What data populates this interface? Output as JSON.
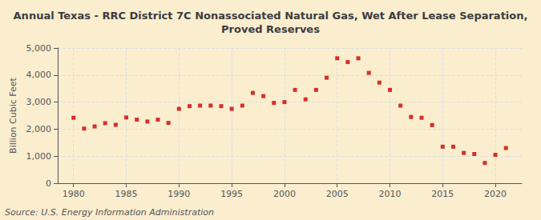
{
  "chart_data": {
    "type": "scatter",
    "title": "Annual Texas - RRC District 7C Nonassociated Natural Gas, Wet After Lease Separation,\nProved Reserves",
    "y_label": "Billion Cubic Feet",
    "annotations": [
      "Source: U.S. Energy Information Administration"
    ],
    "x": [
      1980,
      1981,
      1982,
      1983,
      1984,
      1985,
      1986,
      1987,
      1988,
      1989,
      1990,
      1991,
      1992,
      1993,
      1994,
      1995,
      1996,
      1997,
      1998,
      1999,
      2000,
      2001,
      2002,
      2003,
      2004,
      2005,
      2006,
      2007,
      2008,
      2009,
      2010,
      2011,
      2012,
      2013,
      2014,
      2015,
      2016,
      2017,
      2018,
      2019,
      2020,
      2021
    ],
    "values": [
      2420,
      2020,
      2100,
      2220,
      2160,
      2430,
      2350,
      2280,
      2350,
      2230,
      2750,
      2850,
      2870,
      2870,
      2850,
      2750,
      2870,
      3340,
      3220,
      2970,
      3000,
      3450,
      3100,
      3450,
      3900,
      4620,
      4480,
      4620,
      4080,
      3720,
      3450,
      2870,
      2450,
      2420,
      2150,
      1350,
      1350,
      1120,
      1080,
      750,
      1050,
      1300
    ],
    "color": "#cc0000",
    "marker": "square",
    "xlim": [
      1978.5,
      2022.5
    ],
    "xticks": [
      1980,
      1985,
      1990,
      1995,
      2000,
      2005,
      2010,
      2015,
      2020
    ],
    "ylim": [
      0,
      5000
    ],
    "yticks": [
      0,
      {
        "value": 1000,
        "label": "1,000"
      },
      {
        "value": 2000,
        "label": "2,000"
      },
      {
        "value": 3000,
        "label": "3,000"
      },
      {
        "value": 4000,
        "label": "4,000"
      },
      {
        "value": 5000,
        "label": "5,000"
      }
    ],
    "grid": true
  }
}
